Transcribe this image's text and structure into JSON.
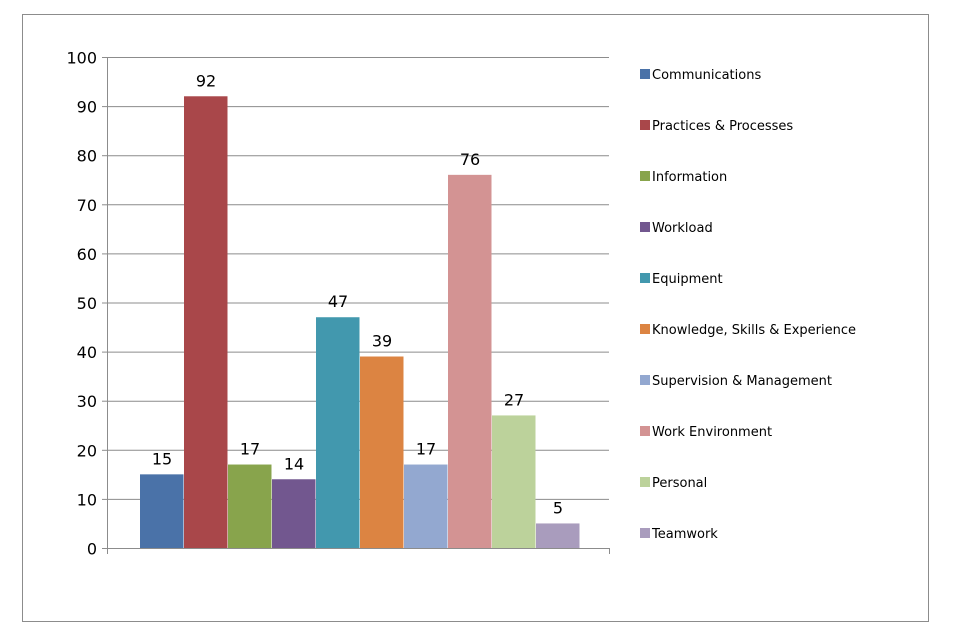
{
  "chart_data": {
    "type": "bar",
    "title": "",
    "xlabel": "",
    "ylabel": "",
    "ylim": [
      0,
      100
    ],
    "yticks": [
      0,
      10,
      20,
      30,
      40,
      50,
      60,
      70,
      80,
      90,
      100
    ],
    "grid": true,
    "legend_position": "right",
    "data_labels": true,
    "series": [
      {
        "name": "Communications",
        "value": 15,
        "color": "#4a72a8"
      },
      {
        "name": "Practices & Processes",
        "value": 92,
        "color": "#a9474a"
      },
      {
        "name": "Information",
        "value": 17,
        "color": "#88a44c"
      },
      {
        "name": "Workload",
        "value": 14,
        "color": "#72578f"
      },
      {
        "name": "Equipment",
        "value": 47,
        "color": "#4298ae"
      },
      {
        "name": "Knowledge, Skills & Experience",
        "value": 39,
        "color": "#dc8442"
      },
      {
        "name": "Supervision & Management",
        "value": 17,
        "color": "#93a8d0"
      },
      {
        "name": "Work Environment",
        "value": 76,
        "color": "#d39393"
      },
      {
        "name": "Personal",
        "value": 27,
        "color": "#bcd29b"
      },
      {
        "name": "Teamwork",
        "value": 5,
        "color": "#a99cbd"
      }
    ]
  }
}
